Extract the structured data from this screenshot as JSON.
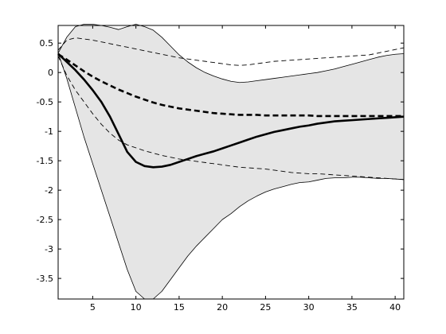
{
  "chart_data": {
    "type": "line",
    "title": "",
    "xlabel": "",
    "ylabel": "",
    "xlim": [
      1,
      41
    ],
    "ylim": [
      -3.85,
      0.8
    ],
    "grid": false,
    "legend": "none",
    "x_ticks": [
      5,
      10,
      15,
      20,
      25,
      30,
      35,
      40
    ],
    "x_tick_labels": [
      "5",
      "10",
      "15",
      "20",
      "25",
      "30",
      "35",
      "40"
    ],
    "y_ticks": [
      0.5,
      0,
      -0.5,
      -1,
      -1.5,
      -2,
      -2.5,
      -3,
      -3.5
    ],
    "y_tick_labels": [
      "0.5",
      "0",
      "-0.5",
      "-1",
      "-1.5",
      "-2",
      "-2.5",
      "-3",
      "-3.5"
    ],
    "band_color": "#e5e5e5",
    "line_color": "#000000",
    "series": [
      {
        "style": "band-upper",
        "points": [
          [
            1,
            0.33
          ],
          [
            2,
            0.6
          ],
          [
            3,
            0.78
          ],
          [
            4,
            0.82
          ],
          [
            5,
            0.82
          ],
          [
            6,
            0.8
          ],
          [
            7,
            0.77
          ],
          [
            8,
            0.73
          ],
          [
            9,
            0.78
          ],
          [
            10,
            0.82
          ],
          [
            11,
            0.78
          ],
          [
            12,
            0.72
          ],
          [
            13,
            0.6
          ],
          [
            14,
            0.45
          ],
          [
            15,
            0.3
          ],
          [
            16,
            0.18
          ],
          [
            17,
            0.08
          ],
          [
            18,
            0.0
          ],
          [
            19,
            -0.06
          ],
          [
            20,
            -0.11
          ],
          [
            21,
            -0.15
          ],
          [
            22,
            -0.17
          ],
          [
            23,
            -0.16
          ],
          [
            24,
            -0.14
          ],
          [
            25,
            -0.12
          ],
          [
            26,
            -0.1
          ],
          [
            27,
            -0.08
          ],
          [
            28,
            -0.06
          ],
          [
            29,
            -0.04
          ],
          [
            30,
            -0.02
          ],
          [
            31,
            0.0
          ],
          [
            32,
            0.03
          ],
          [
            33,
            0.06
          ],
          [
            34,
            0.1
          ],
          [
            35,
            0.14
          ],
          [
            36,
            0.18
          ],
          [
            37,
            0.22
          ],
          [
            38,
            0.26
          ],
          [
            39,
            0.29
          ],
          [
            40,
            0.31
          ],
          [
            41,
            0.32
          ]
        ]
      },
      {
        "style": "band-lower",
        "points": [
          [
            1,
            0.33
          ],
          [
            2,
            -0.1
          ],
          [
            3,
            -0.6
          ],
          [
            4,
            -1.1
          ],
          [
            5,
            -1.55
          ],
          [
            6,
            -2.0
          ],
          [
            7,
            -2.45
          ],
          [
            8,
            -2.9
          ],
          [
            9,
            -3.35
          ],
          [
            10,
            -3.72
          ],
          [
            11,
            -3.85
          ],
          [
            12,
            -3.85
          ],
          [
            13,
            -3.72
          ],
          [
            14,
            -3.52
          ],
          [
            15,
            -3.32
          ],
          [
            16,
            -3.12
          ],
          [
            17,
            -2.95
          ],
          [
            18,
            -2.8
          ],
          [
            19,
            -2.65
          ],
          [
            20,
            -2.5
          ],
          [
            21,
            -2.4
          ],
          [
            22,
            -2.28
          ],
          [
            23,
            -2.18
          ],
          [
            24,
            -2.1
          ],
          [
            25,
            -2.03
          ],
          [
            26,
            -1.98
          ],
          [
            27,
            -1.94
          ],
          [
            28,
            -1.9
          ],
          [
            29,
            -1.87
          ],
          [
            30,
            -1.86
          ],
          [
            31,
            -1.83
          ],
          [
            32,
            -1.8
          ],
          [
            33,
            -1.79
          ],
          [
            34,
            -1.79
          ],
          [
            35,
            -1.78
          ],
          [
            36,
            -1.78
          ],
          [
            37,
            -1.79
          ],
          [
            38,
            -1.8
          ],
          [
            39,
            -1.8
          ],
          [
            40,
            -1.81
          ],
          [
            41,
            -1.82
          ]
        ]
      },
      {
        "style": "solid-thick",
        "points": [
          [
            1,
            0.32
          ],
          [
            2,
            0.18
          ],
          [
            3,
            0.04
          ],
          [
            4,
            -0.12
          ],
          [
            5,
            -0.3
          ],
          [
            6,
            -0.5
          ],
          [
            7,
            -0.75
          ],
          [
            8,
            -1.05
          ],
          [
            9,
            -1.35
          ],
          [
            10,
            -1.52
          ],
          [
            11,
            -1.59
          ],
          [
            12,
            -1.61
          ],
          [
            13,
            -1.6
          ],
          [
            14,
            -1.57
          ],
          [
            15,
            -1.52
          ],
          [
            16,
            -1.47
          ],
          [
            17,
            -1.42
          ],
          [
            18,
            -1.38
          ],
          [
            19,
            -1.34
          ],
          [
            20,
            -1.29
          ],
          [
            21,
            -1.24
          ],
          [
            22,
            -1.19
          ],
          [
            23,
            -1.14
          ],
          [
            24,
            -1.09
          ],
          [
            25,
            -1.05
          ],
          [
            26,
            -1.01
          ],
          [
            27,
            -0.98
          ],
          [
            28,
            -0.95
          ],
          [
            29,
            -0.92
          ],
          [
            30,
            -0.9
          ],
          [
            31,
            -0.87
          ],
          [
            32,
            -0.85
          ],
          [
            33,
            -0.83
          ],
          [
            34,
            -0.82
          ],
          [
            35,
            -0.81
          ],
          [
            36,
            -0.8
          ],
          [
            37,
            -0.79
          ],
          [
            38,
            -0.78
          ],
          [
            39,
            -0.77
          ],
          [
            40,
            -0.76
          ],
          [
            41,
            -0.75
          ]
        ]
      },
      {
        "style": "dashed-thick",
        "points": [
          [
            1,
            0.31
          ],
          [
            2,
            0.22
          ],
          [
            3,
            0.12
          ],
          [
            4,
            0.02
          ],
          [
            5,
            -0.07
          ],
          [
            6,
            -0.15
          ],
          [
            7,
            -0.22
          ],
          [
            8,
            -0.29
          ],
          [
            9,
            -0.35
          ],
          [
            10,
            -0.41
          ],
          [
            11,
            -0.46
          ],
          [
            12,
            -0.51
          ],
          [
            13,
            -0.55
          ],
          [
            14,
            -0.58
          ],
          [
            15,
            -0.61
          ],
          [
            16,
            -0.63
          ],
          [
            17,
            -0.65
          ],
          [
            18,
            -0.67
          ],
          [
            19,
            -0.69
          ],
          [
            20,
            -0.7
          ],
          [
            21,
            -0.71
          ],
          [
            22,
            -0.72
          ],
          [
            23,
            -0.72
          ],
          [
            24,
            -0.72
          ],
          [
            25,
            -0.73
          ],
          [
            26,
            -0.73
          ],
          [
            27,
            -0.73
          ],
          [
            28,
            -0.73
          ],
          [
            29,
            -0.73
          ],
          [
            30,
            -0.73
          ],
          [
            31,
            -0.74
          ],
          [
            32,
            -0.74
          ],
          [
            33,
            -0.74
          ],
          [
            34,
            -0.74
          ],
          [
            35,
            -0.74
          ],
          [
            36,
            -0.74
          ],
          [
            37,
            -0.74
          ],
          [
            38,
            -0.74
          ],
          [
            39,
            -0.74
          ],
          [
            40,
            -0.74
          ],
          [
            41,
            -0.74
          ]
        ]
      },
      {
        "style": "dashed-thin-upper",
        "points": [
          [
            1,
            0.38
          ],
          [
            2,
            0.55
          ],
          [
            3,
            0.59
          ],
          [
            4,
            0.57
          ],
          [
            5,
            0.55
          ],
          [
            6,
            0.52
          ],
          [
            7,
            0.49
          ],
          [
            8,
            0.46
          ],
          [
            9,
            0.43
          ],
          [
            10,
            0.4
          ],
          [
            11,
            0.37
          ],
          [
            12,
            0.34
          ],
          [
            13,
            0.31
          ],
          [
            14,
            0.28
          ],
          [
            15,
            0.25
          ],
          [
            16,
            0.23
          ],
          [
            17,
            0.21
          ],
          [
            18,
            0.19
          ],
          [
            19,
            0.17
          ],
          [
            20,
            0.15
          ],
          [
            21,
            0.13
          ],
          [
            22,
            0.12
          ],
          [
            23,
            0.13
          ],
          [
            24,
            0.15
          ],
          [
            25,
            0.17
          ],
          [
            26,
            0.19
          ],
          [
            27,
            0.2
          ],
          [
            28,
            0.21
          ],
          [
            29,
            0.22
          ],
          [
            30,
            0.23
          ],
          [
            31,
            0.24
          ],
          [
            32,
            0.25
          ],
          [
            33,
            0.26
          ],
          [
            34,
            0.27
          ],
          [
            35,
            0.28
          ],
          [
            36,
            0.29
          ],
          [
            37,
            0.3
          ],
          [
            38,
            0.33
          ],
          [
            39,
            0.36
          ],
          [
            40,
            0.39
          ],
          [
            41,
            0.42
          ]
        ]
      },
      {
        "style": "dashed-thin-lower",
        "points": [
          [
            1,
            0.28
          ],
          [
            2,
            -0.05
          ],
          [
            3,
            -0.3
          ],
          [
            4,
            -0.5
          ],
          [
            5,
            -0.7
          ],
          [
            6,
            -0.88
          ],
          [
            7,
            -1.03
          ],
          [
            8,
            -1.15
          ],
          [
            9,
            -1.23
          ],
          [
            10,
            -1.28
          ],
          [
            11,
            -1.33
          ],
          [
            12,
            -1.37
          ],
          [
            13,
            -1.41
          ],
          [
            14,
            -1.44
          ],
          [
            15,
            -1.47
          ],
          [
            16,
            -1.49
          ],
          [
            17,
            -1.51
          ],
          [
            18,
            -1.53
          ],
          [
            19,
            -1.55
          ],
          [
            20,
            -1.57
          ],
          [
            21,
            -1.59
          ],
          [
            22,
            -1.61
          ],
          [
            23,
            -1.62
          ],
          [
            24,
            -1.63
          ],
          [
            25,
            -1.64
          ],
          [
            26,
            -1.66
          ],
          [
            27,
            -1.68
          ],
          [
            28,
            -1.7
          ],
          [
            29,
            -1.71
          ],
          [
            30,
            -1.72
          ],
          [
            31,
            -1.72
          ],
          [
            32,
            -1.73
          ],
          [
            33,
            -1.74
          ],
          [
            34,
            -1.75
          ],
          [
            35,
            -1.76
          ],
          [
            36,
            -1.77
          ],
          [
            37,
            -1.78
          ],
          [
            38,
            -1.79
          ],
          [
            39,
            -1.8
          ],
          [
            40,
            -1.81
          ],
          [
            41,
            -1.82
          ]
        ]
      }
    ]
  }
}
